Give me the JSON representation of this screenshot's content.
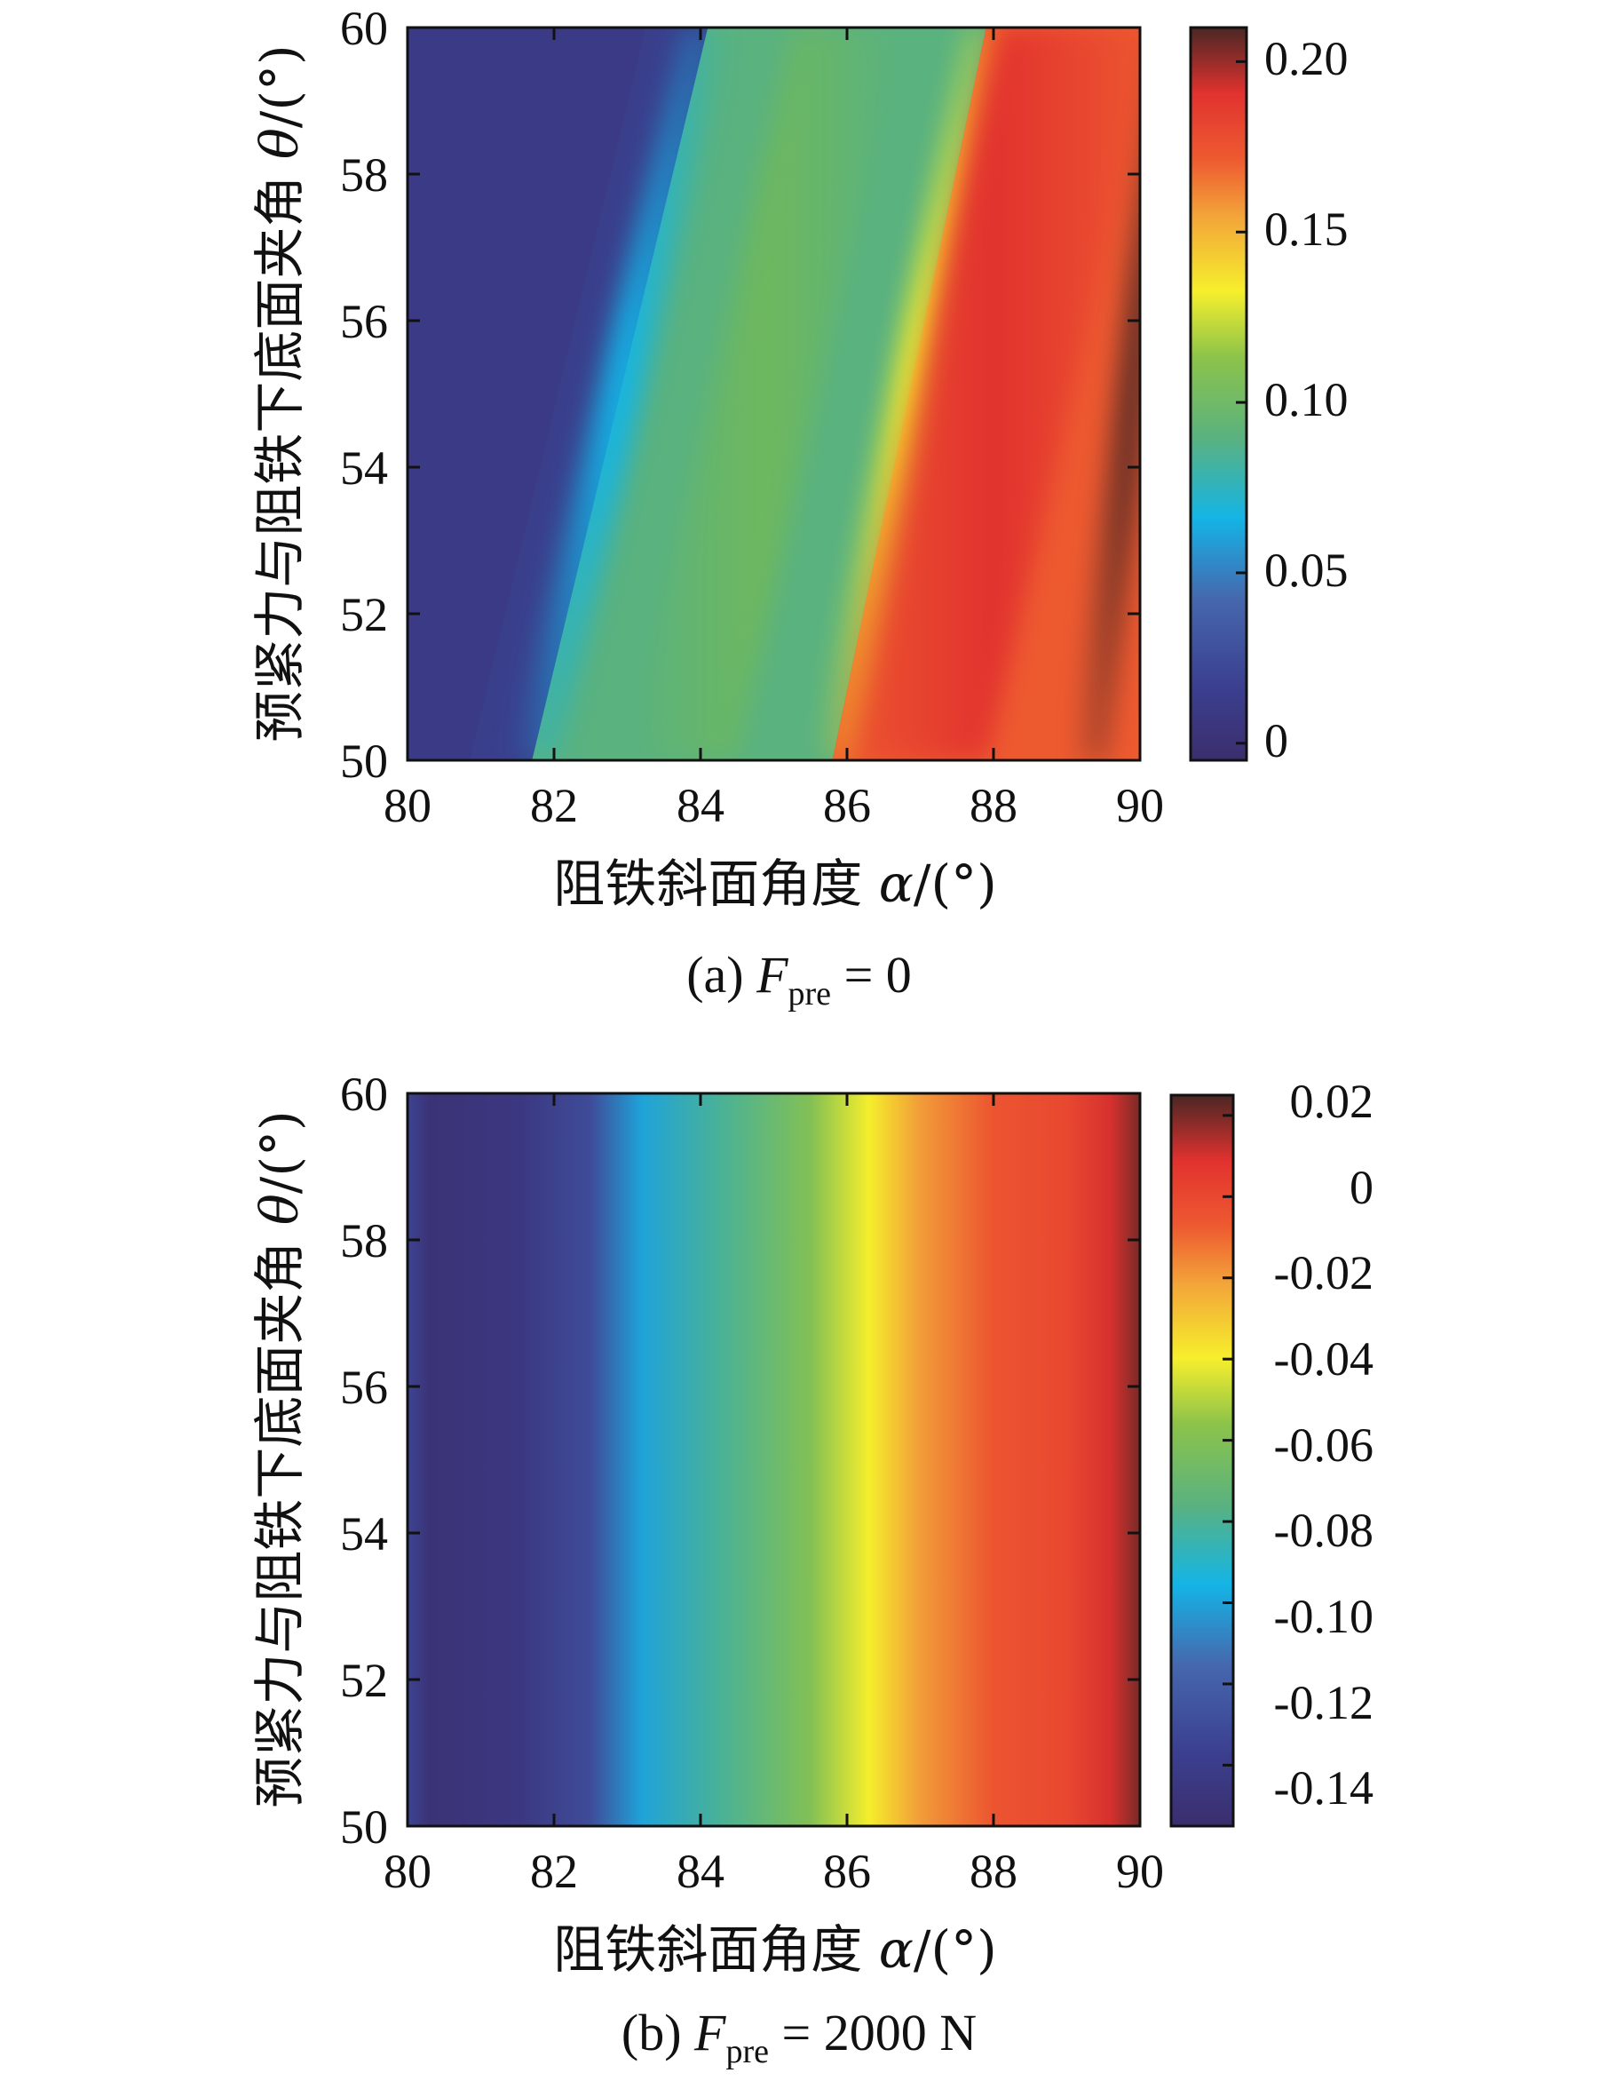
{
  "chart_data": [
    {
      "type": "heatmap",
      "panel": "a",
      "caption": {
        "prefix": "(a) ",
        "var": "F",
        "sub": "pre",
        "suffix": " = 0"
      },
      "xlabel": {
        "text": "阻铁斜面角度 ",
        "sym": "α",
        "unit": "/(°)"
      },
      "ylabel": {
        "text": "预紧力与阻铁下底面夹角 ",
        "sym": "θ",
        "unit": "/(°)"
      },
      "x_ticks": [
        "80",
        "82",
        "84",
        "86",
        "88",
        "90"
      ],
      "y_ticks": [
        "50",
        "52",
        "54",
        "56",
        "58",
        "60"
      ],
      "xlim": [
        80,
        90
      ],
      "ylim": [
        50,
        60
      ],
      "colorbar": {
        "clim": [
          -0.005,
          0.21
        ],
        "ticks": [
          0,
          0.05,
          0.1,
          0.15,
          0.2
        ],
        "tick_labels": [
          "0",
          "0.05",
          "0.10",
          "0.15",
          "0.20"
        ]
      },
      "contours": {
        "y": [
          50,
          60
        ],
        "cyan_0_07": [
          81.7,
          84.1
        ],
        "yellow_0_13": [
          85.8,
          87.9
        ],
        "red_0_17": [
          86.8,
          89.2
        ],
        "darkred_0_20": [
          89.3,
          90.5
        ]
      },
      "colormap": "jet-muted"
    },
    {
      "type": "heatmap",
      "panel": "b",
      "caption": {
        "prefix": "(b) ",
        "var": "F",
        "sub": "pre",
        "suffix": " = 2000 N"
      },
      "xlabel": {
        "text": "阻铁斜面角度 ",
        "sym": "α",
        "unit": "/(°)"
      },
      "ylabel": {
        "text": "预紧力与阻铁下底面夹角 ",
        "sym": "θ",
        "unit": "/(°)"
      },
      "x_ticks": [
        "80",
        "82",
        "84",
        "86",
        "88",
        "90"
      ],
      "y_ticks": [
        "50",
        "52",
        "54",
        "56",
        "58",
        "60"
      ],
      "xlim": [
        80,
        90
      ],
      "ylim": [
        50,
        60
      ],
      "colorbar": {
        "clim": [
          -0.155,
          0.025
        ],
        "ticks": [
          0.02,
          0,
          -0.02,
          -0.04,
          -0.06,
          -0.08,
          -0.1,
          -0.12,
          -0.14
        ],
        "tick_labels": [
          "0.02",
          "0",
          "-0.02",
          "-0.04",
          "-0.06",
          "-0.08",
          "-0.10",
          "-0.12",
          "-0.14"
        ]
      },
      "profile_x": [
        80.0,
        80.3,
        81.5,
        82.5,
        83.2,
        84.3,
        85.5,
        86.3,
        87.0,
        88.0,
        89.0,
        89.6,
        90.0
      ],
      "profile_v": [
        -0.135,
        -0.15,
        -0.145,
        -0.13,
        -0.1,
        -0.08,
        -0.06,
        -0.04,
        -0.02,
        -0.005,
        0.0,
        0.01,
        0.02
      ],
      "colormap": "jet-muted"
    }
  ]
}
